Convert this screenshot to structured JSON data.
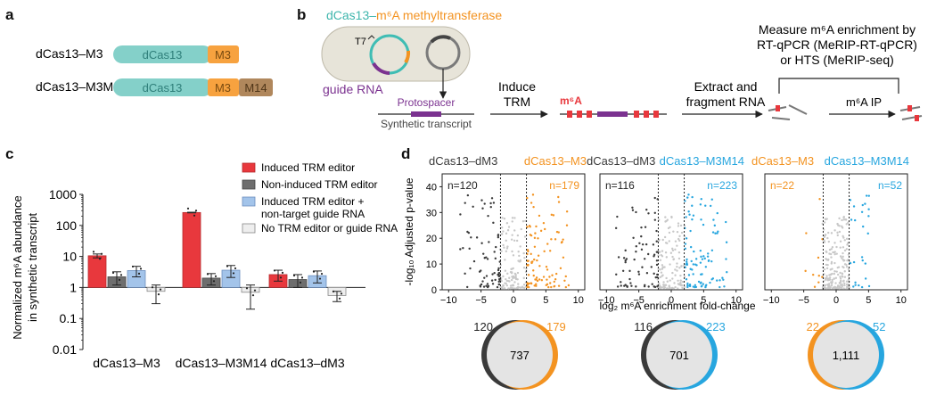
{
  "panels": {
    "a": {
      "label": "a",
      "rows": [
        {
          "name": "dCas13–M3",
          "parts": [
            "dCas13",
            "M3"
          ]
        },
        {
          "name": "dCas13–M3M14",
          "parts": [
            "dCas13",
            "M3",
            "M14"
          ]
        }
      ]
    },
    "b": {
      "label": "b",
      "title_left": "dCas13–",
      "title_right": "m⁶A methyltransferase",
      "t7": "T7",
      "guide_rna": "guide RNA",
      "protospacer": "Protospacer",
      "synthetic_transcript": "Synthetic transcript",
      "induce_1": "Induce",
      "induce_2": "TRM",
      "m6a": "m⁶A",
      "extract_1": "Extract and",
      "extract_2": "fragment RNA",
      "measure_1": "Measure m⁶A enrichment by",
      "measure_2": "RT-qPCR (MeRIP-RT-qPCR)",
      "measure_3": "or HTS (MeRIP-seq)",
      "ip": "m⁶A IP"
    },
    "c": {
      "label": "c",
      "ylabel_1": "Normalized m⁶A abundance",
      "ylabel_2": "in synthetic transcript",
      "legend": [
        {
          "label": "Induced TRM editor",
          "color": "#e8383d"
        },
        {
          "label": "Non-induced TRM editor",
          "color": "#6e6e6e"
        },
        {
          "label": "Induced TRM editor +",
          "label2": "non-target guide RNA",
          "color": "#a3c4ea"
        },
        {
          "label": "No TRM editor or guide RNA",
          "color": "#eeeeee"
        }
      ],
      "yticks": [
        "1000",
        "100",
        "10",
        "1",
        "0.1",
        "0.01"
      ]
    },
    "d": {
      "label": "d",
      "ylabel": "-log₁₀ Adjusted p-value",
      "xlabel": "log₂ m⁶A enrichment fold-change",
      "yticks": [
        "0",
        "10",
        "20",
        "30",
        "40"
      ],
      "xticks": [
        "−10",
        "−5",
        "0",
        "5",
        "10"
      ]
    }
  },
  "chart_data": [
    {
      "type": "bar",
      "title": "",
      "ylabel": "Normalized m⁶A abundance in synthetic transcript",
      "yscale": "log",
      "ylim": [
        0.01,
        1000
      ],
      "categories": [
        "dCas13–M3",
        "dCas13–M3M14",
        "dCas13–dM3"
      ],
      "series": [
        {
          "name": "Induced TRM editor",
          "values": [
            10.5,
            260,
            2.6
          ],
          "err": [
            1.5,
            6,
            1.0
          ]
        },
        {
          "name": "Non-induced TRM editor",
          "values": [
            2.2,
            2.0,
            1.8
          ],
          "err": [
            1.0,
            0.8,
            0.8
          ]
        },
        {
          "name": "Induced TRM editor + non-target guide RNA",
          "values": [
            3.5,
            3.6,
            2.4
          ],
          "err": [
            1.3,
            1.5,
            1.0
          ]
        },
        {
          "name": "No TRM editor or guide RNA",
          "values": [
            0.75,
            0.7,
            0.55
          ],
          "err": [
            0.45,
            0.5,
            0.2
          ]
        }
      ]
    },
    {
      "type": "scatter",
      "xlabel": "log₂ m⁶A enrichment fold-change",
      "ylabel": "-log₁₀ Adjusted p-value",
      "xlim": [
        -11,
        11
      ],
      "ylim": [
        0,
        45
      ],
      "thresholds_x": [
        -2,
        2
      ],
      "panels": [
        {
          "left": "dCas13–dM3",
          "right": "dCas13–M3",
          "n_left": "n=120",
          "n_right": "n=179",
          "left_color": "#3a3a3a",
          "right_color": "#f39321",
          "seed": 7
        },
        {
          "left": "dCas13–dM3",
          "right": "dCas13–M3M14",
          "n_left": "n=116",
          "n_right": "n=223",
          "left_color": "#3a3a3a",
          "right_color": "#27a6df",
          "seed": 19
        },
        {
          "left": "dCas13–M3",
          "right": "dCas13–M3M14",
          "n_left": "n=22",
          "n_right": "n=52",
          "left_color": "#f39321",
          "right_color": "#27a6df",
          "seed": 31
        }
      ]
    },
    {
      "type": "venn",
      "diagrams": [
        {
          "left": "120",
          "center": "737",
          "right": "179",
          "left_color": "#3a3a3a",
          "right_color": "#f39321"
        },
        {
          "left": "116",
          "center": "701",
          "right": "223",
          "left_color": "#3a3a3a",
          "right_color": "#27a6df"
        },
        {
          "left": "22",
          "center": "1,111",
          "right": "52",
          "left_color": "#f39321",
          "right_color": "#27a6df"
        }
      ]
    }
  ]
}
